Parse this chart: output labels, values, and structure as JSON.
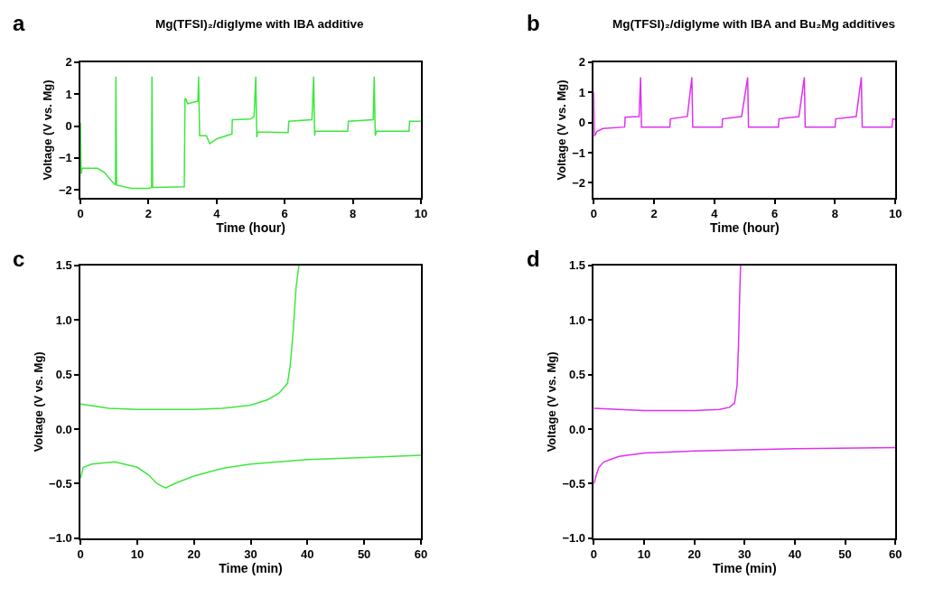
{
  "chart_data": [
    {
      "type": "line",
      "title": "Mg(TFSI)₂/diglyme with IBA additive",
      "annotations": [
        "a"
      ],
      "xlabel": "Time (hour)",
      "ylabel": "Voltage (V vs. Mg)",
      "xlim": [
        0,
        10
      ],
      "xticks": [
        0,
        2,
        4,
        6,
        8,
        10
      ],
      "ylim": [
        -2.25,
        2
      ],
      "yticks": [
        -2,
        -1,
        0,
        1,
        2
      ],
      "series": [
        {
          "color": "#3de83d",
          "x": [
            0,
            0.02,
            0.05,
            0.5,
            0.7,
            0.9,
            1.0,
            1.03,
            1.04,
            1.06,
            1.5,
            2.0,
            2.09,
            2.1,
            2.12,
            3.05,
            3.07,
            3.1,
            3.15,
            3.45,
            3.47,
            3.5,
            3.6,
            3.7,
            3.8,
            4.0,
            4.45,
            4.46,
            4.5,
            5.0,
            5.1,
            5.15,
            5.18,
            5.2,
            6.1,
            6.12,
            6.8,
            6.85,
            6.88,
            6.9,
            7.85,
            7.87,
            8.6,
            8.63,
            8.66,
            8.7,
            9.65,
            9.67,
            10
          ],
          "values": [
            0.1,
            -1.5,
            -1.32,
            -1.32,
            -1.45,
            -1.7,
            -1.82,
            -1.82,
            1.55,
            -1.85,
            -1.95,
            -1.95,
            -1.92,
            1.55,
            -1.92,
            -1.9,
            0.85,
            0.85,
            0.7,
            0.78,
            1.55,
            -0.3,
            -0.3,
            -0.3,
            -0.55,
            -0.4,
            -0.25,
            0.2,
            0.2,
            0.22,
            0.3,
            1.55,
            -0.35,
            -0.18,
            -0.2,
            0.15,
            0.2,
            1.55,
            -0.3,
            -0.16,
            -0.16,
            0.15,
            0.2,
            1.55,
            -0.3,
            -0.16,
            -0.16,
            0.15,
            0.15
          ]
        }
      ]
    },
    {
      "type": "line",
      "title": "Mg(TFSI)₂/diglyme with IBA and Bu₂Mg additives",
      "annotations": [
        "b"
      ],
      "xlabel": "Time (hour)",
      "ylabel": "Voltage (V vs. Mg)",
      "xlim": [
        0,
        10
      ],
      "xticks": [
        0,
        2,
        4,
        6,
        8,
        10
      ],
      "ylim": [
        -2.5,
        2
      ],
      "yticks": [
        -2,
        -1,
        0,
        1,
        2
      ],
      "series": [
        {
          "color": "#e030f0",
          "x": [
            0,
            0.02,
            0.1,
            0.3,
            1.02,
            1.04,
            1.5,
            1.55,
            1.58,
            2.52,
            2.54,
            3.1,
            3.25,
            3.28,
            4.25,
            4.27,
            4.9,
            5.1,
            5.13,
            6.12,
            6.14,
            6.8,
            6.98,
            7.01,
            8.0,
            8.02,
            8.7,
            8.87,
            8.9,
            9.89,
            9.91,
            10
          ],
          "values": [
            1.0,
            -0.45,
            -0.3,
            -0.2,
            -0.15,
            0.18,
            0.2,
            1.5,
            -0.15,
            -0.15,
            0.12,
            0.2,
            1.5,
            -0.15,
            -0.15,
            0.12,
            0.2,
            1.5,
            -0.15,
            -0.15,
            0.12,
            0.2,
            1.5,
            -0.15,
            -0.15,
            0.12,
            0.2,
            1.5,
            -0.15,
            -0.15,
            0.12,
            0.1
          ]
        }
      ]
    },
    {
      "type": "line",
      "annotations": [
        "c"
      ],
      "xlabel": "Time (min)",
      "ylabel": "Voltage (V vs. Mg)",
      "xlim": [
        0,
        60
      ],
      "xticks": [
        0,
        10,
        20,
        30,
        40,
        50,
        60
      ],
      "ylim": [
        -1.0,
        1.5
      ],
      "yticks": [
        {
          "value": -1,
          "label": "−1.0"
        },
        {
          "value": -0.5,
          "label": "−0.5"
        },
        {
          "value": 0,
          "label": "0.0"
        },
        {
          "value": 0.5,
          "label": "0.5"
        },
        {
          "value": 1,
          "label": "1.0"
        },
        {
          "value": 1.5,
          "label": "1.5"
        }
      ],
      "series": [
        {
          "color": "#3de83d",
          "x": [
            0,
            5,
            10,
            20,
            25,
            30,
            33,
            35,
            36.5,
            37,
            37.5,
            38,
            38.5
          ],
          "values": [
            0.23,
            0.19,
            0.18,
            0.18,
            0.19,
            0.22,
            0.27,
            0.33,
            0.42,
            0.6,
            0.9,
            1.3,
            1.5
          ]
        },
        {
          "color": "#3de83d",
          "x": [
            0,
            0.5,
            2,
            6,
            10,
            12,
            13.5,
            15,
            17,
            20,
            25,
            30,
            40,
            50,
            60
          ],
          "values": [
            -0.45,
            -0.35,
            -0.32,
            -0.3,
            -0.35,
            -0.42,
            -0.5,
            -0.54,
            -0.49,
            -0.43,
            -0.36,
            -0.32,
            -0.28,
            -0.26,
            -0.24
          ]
        }
      ]
    },
    {
      "type": "line",
      "annotations": [
        "d"
      ],
      "xlabel": "Time (min)",
      "ylabel": "Voltage (V vs. Mg)",
      "xlim": [
        0,
        60
      ],
      "xticks": [
        0,
        10,
        20,
        30,
        40,
        50,
        60
      ],
      "ylim": [
        -1.0,
        1.5
      ],
      "yticks": [
        {
          "value": -1,
          "label": "−1.0"
        },
        {
          "value": -0.5,
          "label": "−0.5"
        },
        {
          "value": 0,
          "label": "0.0"
        },
        {
          "value": 0.5,
          "label": "0.5"
        },
        {
          "value": 1,
          "label": "1.0"
        },
        {
          "value": 1.5,
          "label": "1.5"
        }
      ],
      "series": [
        {
          "color": "#e030f0",
          "x": [
            0,
            5,
            10,
            20,
            25,
            27,
            28,
            28.5,
            28.8,
            29,
            29.2
          ],
          "values": [
            0.19,
            0.18,
            0.17,
            0.17,
            0.18,
            0.2,
            0.24,
            0.4,
            0.8,
            1.2,
            1.5
          ]
        },
        {
          "color": "#e030f0",
          "x": [
            0,
            0.5,
            1,
            2,
            5,
            10,
            20,
            30,
            40,
            60
          ],
          "values": [
            -0.5,
            -0.42,
            -0.35,
            -0.3,
            -0.25,
            -0.22,
            -0.2,
            -0.19,
            -0.18,
            -0.17
          ]
        }
      ]
    }
  ]
}
